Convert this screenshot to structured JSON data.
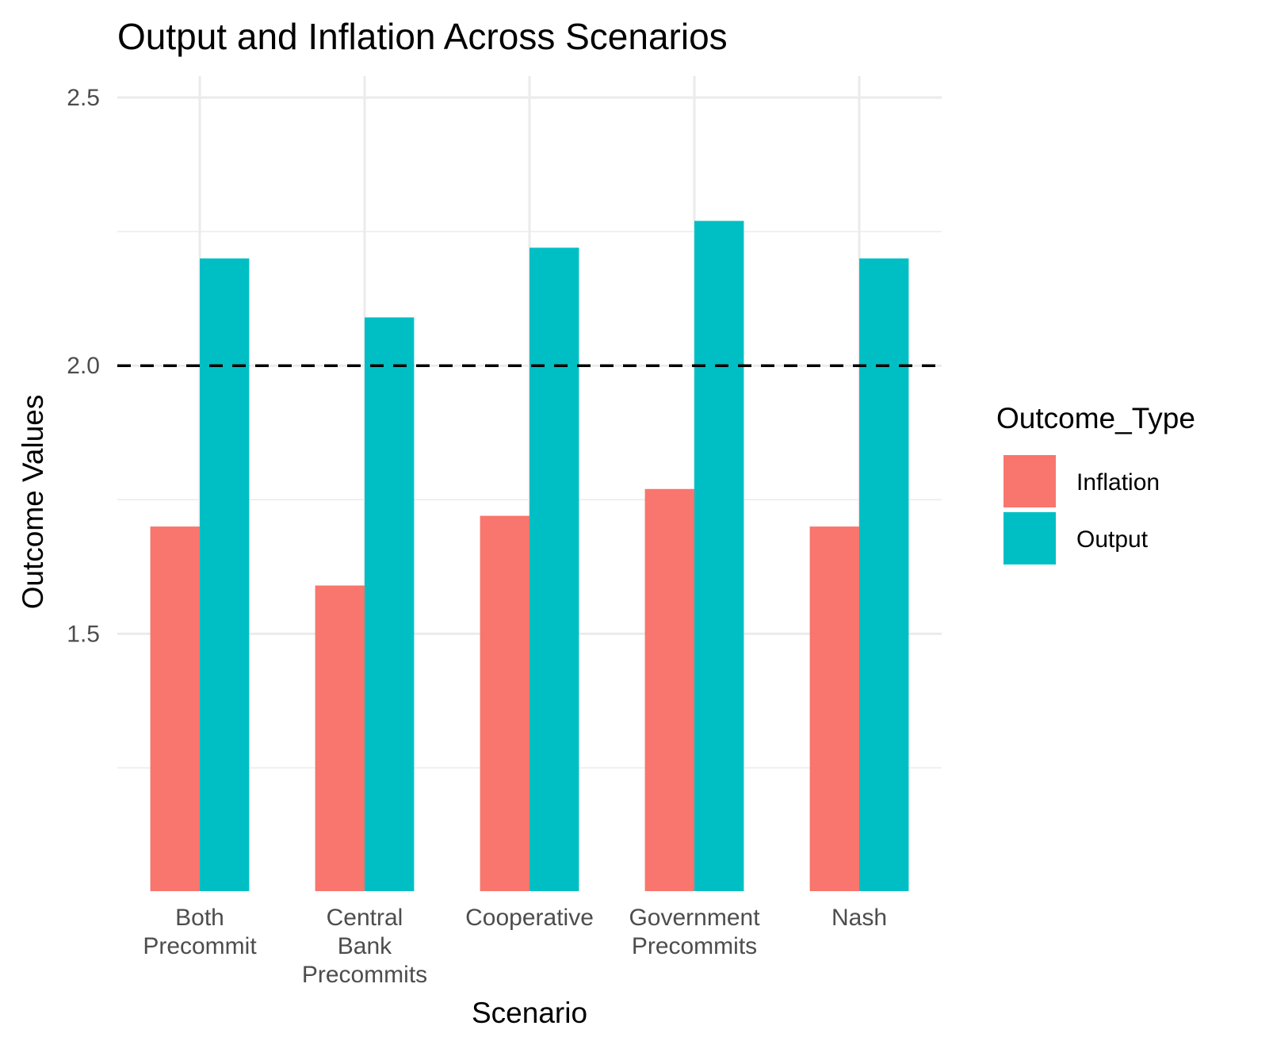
{
  "chart_data": {
    "type": "bar",
    "title": "Output and Inflation Across Scenarios",
    "xlabel": "Scenario",
    "ylabel": "Outcome Values",
    "categories": [
      [
        "Both",
        "Precommit"
      ],
      [
        "Central",
        "Bank",
        "Precommits"
      ],
      [
        "Cooperative"
      ],
      [
        "Government",
        "Precommits"
      ],
      [
        "Nash"
      ]
    ],
    "series": [
      {
        "name": "Inflation",
        "color": "#F8766D",
        "values": [
          1.7,
          1.59,
          1.72,
          1.77,
          1.7
        ]
      },
      {
        "name": "Output",
        "color": "#00BFC4",
        "values": [
          2.2,
          2.09,
          2.22,
          2.27,
          2.2
        ]
      }
    ],
    "yticks": [
      1.5,
      2.0,
      2.5
    ],
    "ytick_labels": [
      "1.5",
      "2.0",
      "2.5"
    ],
    "ylim": [
      1.02,
      2.54
    ],
    "bar_base": 1.02,
    "reference_line": {
      "y": 2.0,
      "style": "dashed",
      "color": "#000000"
    },
    "grid": true,
    "legend": {
      "title": "Outcome_Type",
      "position": "right"
    }
  }
}
